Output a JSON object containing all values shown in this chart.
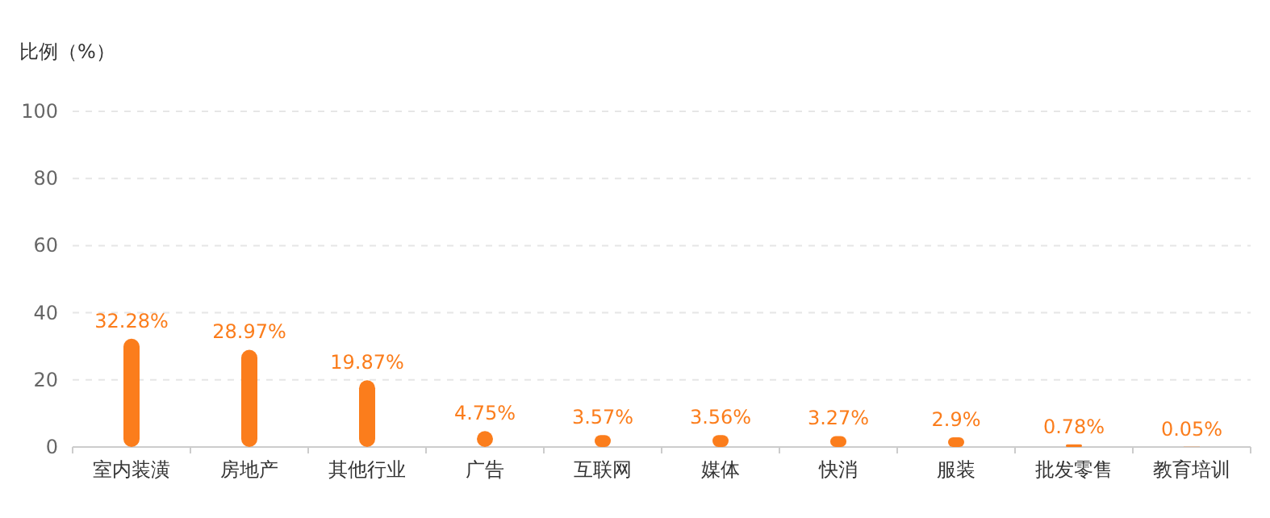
{
  "chart_data": {
    "type": "bar",
    "ylabel": "比例（%）",
    "categories": [
      "室内装潢",
      "房地产",
      "其他行业",
      "广告",
      "互联网",
      "媒体",
      "快消",
      "服装",
      "批发零售",
      "教育培训"
    ],
    "series": [
      {
        "color": "#fb7d1c",
        "values": [
          32.28,
          28.97,
          19.87,
          4.75,
          3.57,
          3.56,
          3.27,
          2.9,
          0.78,
          0.05
        ],
        "value_labels": [
          "32.28%",
          "28.97%",
          "19.87%",
          "4.75%",
          "3.57%",
          "3.56%",
          "3.27%",
          "2.9%",
          "0.78%",
          "0.05%"
        ]
      }
    ],
    "ylim": [
      0,
      100
    ],
    "yticks": [
      0,
      20,
      40,
      60,
      80,
      100
    ],
    "grid": "y"
  }
}
